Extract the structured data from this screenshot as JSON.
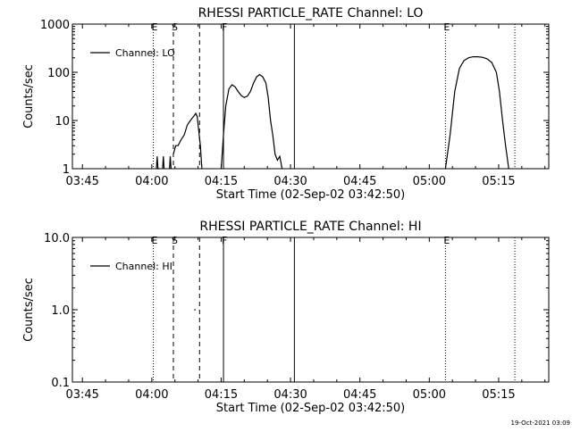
{
  "chart_data": [
    {
      "type": "line",
      "title": "RHESSI PARTICLE_RATE Channel: LO",
      "xlabel": "Start Time (02-Sep-02 03:42:50)",
      "ylabel": "Counts/sec",
      "y_scale": "log",
      "ylim": [
        1,
        1000
      ],
      "y_ticks": [
        {
          "label": "1",
          "value": 1
        },
        {
          "label": "10",
          "value": 10
        },
        {
          "label": "100",
          "value": 100
        },
        {
          "label": "1000",
          "value": 1000
        }
      ],
      "xlim": [
        "03:42:50",
        "05:25:50"
      ],
      "x_ticks": [
        "03:45",
        "04:00",
        "04:15",
        "04:30",
        "04:45",
        "05:00",
        "05:15"
      ],
      "legend": {
        "placement": "top-left",
        "entries": [
          "Channel: LO"
        ]
      },
      "markers": [
        {
          "label": "E",
          "time": "04:00:20",
          "style": "dotted"
        },
        {
          "label": "S",
          "time": "04:04:40",
          "style": "dashed"
        },
        {
          "label": "",
          "time": "04:10:20",
          "style": "dashed"
        },
        {
          "label": "F",
          "time": "04:15:30",
          "style": "solid"
        },
        {
          "label": "",
          "time": "04:30:50",
          "style": "solid"
        },
        {
          "label": "E",
          "time": "05:03:30",
          "style": "dotted"
        },
        {
          "label": "",
          "time": "05:18:30",
          "style": "dotted"
        }
      ],
      "series": [
        {
          "name": "Channel: LO",
          "segments": [
            {
              "x": [
                "04:01:00",
                "04:01:10",
                "04:01:20",
                "04:01:30",
                "04:01:40"
              ],
              "y": [
                1,
                1.8,
                1,
                1,
                1
              ]
            },
            {
              "x": [
                "04:02:20",
                "04:02:30",
                "04:02:40"
              ],
              "y": [
                1,
                1.8,
                1
              ]
            },
            {
              "x": [
                "04:03:50",
                "04:04:00",
                "04:04:10"
              ],
              "y": [
                1,
                1.8,
                1
              ]
            },
            {
              "x": [
                "04:04:40",
                "04:05:10",
                "04:05:40",
                "04:06:20",
                "04:07:00",
                "04:07:40",
                "04:08:20",
                "04:09:00",
                "04:09:30",
                "04:09:50",
                "04:10:10",
                "04:10:30",
                "04:10:50"
              ],
              "y": [
                2,
                3,
                3,
                4,
                5,
                8,
                10,
                12,
                14,
                12,
                6,
                3,
                1
              ]
            },
            {
              "x": [
                "04:15:00",
                "04:15:30",
                "04:16:00",
                "04:16:40",
                "04:17:20",
                "04:18:00",
                "04:18:40",
                "04:19:20",
                "04:20:00",
                "04:20:40",
                "04:21:20",
                "04:22:00",
                "04:22:40",
                "04:23:20",
                "04:24:00",
                "04:24:40",
                "04:25:10",
                "04:25:40",
                "04:26:10",
                "04:26:40",
                "04:27:10",
                "04:27:40",
                "04:28:10"
              ],
              "y": [
                1,
                5,
                20,
                45,
                55,
                50,
                40,
                33,
                30,
                32,
                40,
                60,
                80,
                90,
                80,
                60,
                30,
                10,
                5,
                2,
                1.5,
                1.8,
                1
              ]
            },
            {
              "x": [
                "05:03:30",
                "05:04:30",
                "05:05:30",
                "05:06:30",
                "05:07:30",
                "05:08:30",
                "05:09:30",
                "05:10:30",
                "05:11:30",
                "05:12:30",
                "05:13:30",
                "05:14:30",
                "05:15:10",
                "05:15:50",
                "05:16:30",
                "05:17:10"
              ],
              "y": [
                1,
                5,
                40,
                120,
                175,
                200,
                210,
                210,
                205,
                190,
                160,
                100,
                40,
                10,
                3,
                1
              ]
            }
          ]
        }
      ]
    },
    {
      "type": "line",
      "title": "RHESSI PARTICLE_RATE Channel: HI",
      "xlabel": "Start Time (02-Sep-02 03:42:50)",
      "ylabel": "Counts/sec",
      "y_scale": "log",
      "ylim": [
        0.1,
        10
      ],
      "y_ticks": [
        {
          "label": "0.1",
          "value": 0.1
        },
        {
          "label": "1.0",
          "value": 1
        },
        {
          "label": "10.0",
          "value": 10
        }
      ],
      "xlim": [
        "03:42:50",
        "05:25:50"
      ],
      "x_ticks": [
        "03:45",
        "04:00",
        "04:15",
        "04:30",
        "04:45",
        "05:00",
        "05:15"
      ],
      "legend": {
        "placement": "top-left",
        "entries": [
          "Channel: HI"
        ]
      },
      "markers": [
        {
          "label": "E",
          "time": "04:00:20",
          "style": "dotted"
        },
        {
          "label": "S",
          "time": "04:04:40",
          "style": "dashed"
        },
        {
          "label": "",
          "time": "04:10:20",
          "style": "dashed"
        },
        {
          "label": "F",
          "time": "04:15:30",
          "style": "solid"
        },
        {
          "label": "",
          "time": "04:30:50",
          "style": "solid"
        },
        {
          "label": "E",
          "time": "05:03:30",
          "style": "dotted"
        },
        {
          "label": "",
          "time": "05:18:30",
          "style": "dotted"
        }
      ],
      "series": [
        {
          "name": "Channel: HI",
          "segments": [
            {
              "x": [
                "04:09:10",
                "04:09:30"
              ],
              "y": [
                1,
                1
              ]
            }
          ]
        }
      ]
    }
  ],
  "footer": {
    "timestamp": "19-Oct-2021 03:09"
  }
}
